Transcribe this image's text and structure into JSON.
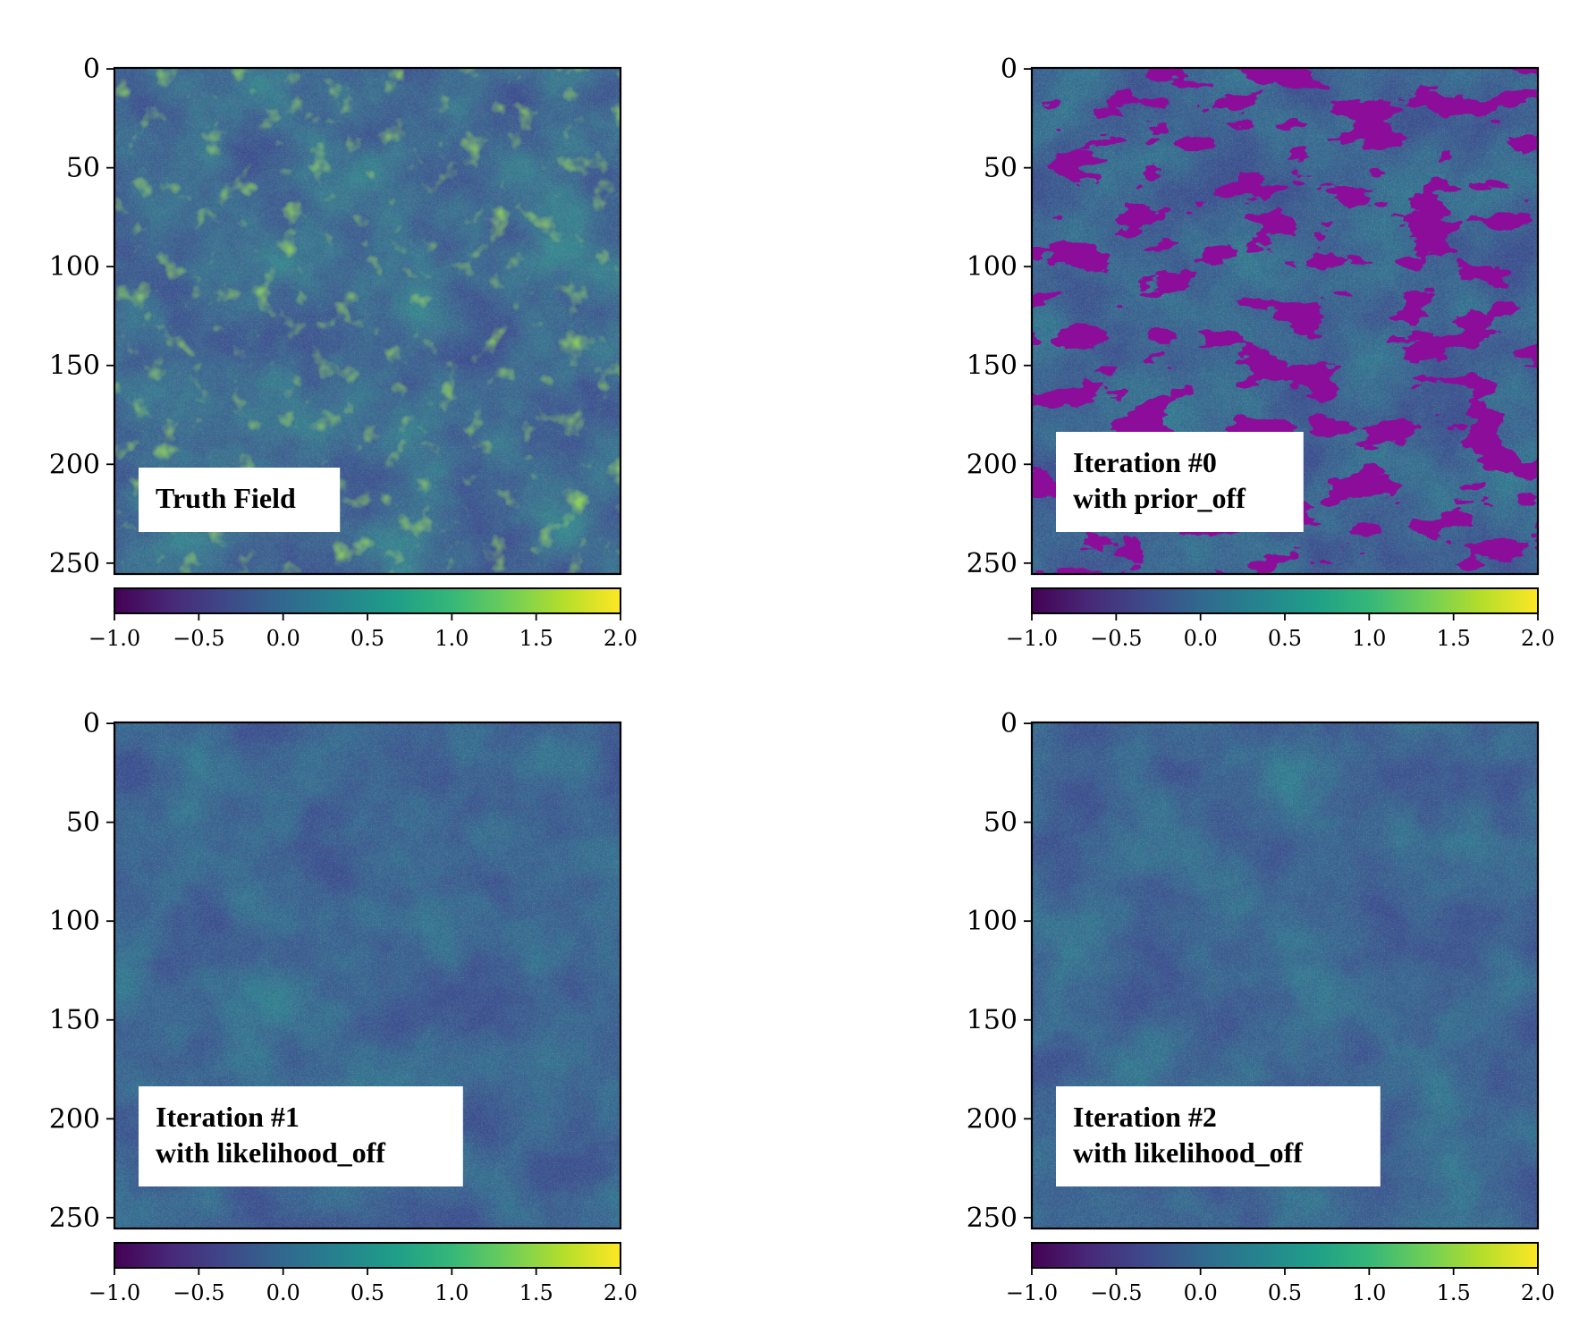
{
  "chart_data": [
    {
      "type": "heatmap",
      "panel": "top-left",
      "annotation_lines": [
        "Truth Field"
      ],
      "field_style": "truth",
      "image_size": [
        256,
        256
      ],
      "yticks": [
        0,
        50,
        100,
        150,
        200,
        250
      ],
      "colorbar": {
        "colormap": "viridis",
        "orientation": "horizontal",
        "range": [
          -1.0,
          2.0
        ],
        "ticks": [
          "−1.0",
          "−0.5",
          "0.0",
          "0.5",
          "1.0",
          "1.5",
          "2.0"
        ]
      }
    },
    {
      "type": "heatmap",
      "panel": "top-right",
      "annotation_lines": [
        "Iteration #0",
        "with prior_off"
      ],
      "field_style": "iteration0",
      "image_size": [
        256,
        256
      ],
      "yticks": [
        0,
        50,
        100,
        150,
        200,
        250
      ],
      "colorbar": {
        "colormap": "viridis",
        "orientation": "horizontal",
        "range": [
          -1.0,
          2.0
        ],
        "ticks": [
          "−1.0",
          "−0.5",
          "0.0",
          "0.5",
          "1.0",
          "1.5",
          "2.0"
        ]
      }
    },
    {
      "type": "heatmap",
      "panel": "bottom-left",
      "annotation_lines": [
        "Iteration #1",
        "with likelihood_off"
      ],
      "field_style": "smoothed",
      "image_size": [
        256,
        256
      ],
      "yticks": [
        0,
        50,
        100,
        150,
        200,
        250
      ],
      "colorbar": {
        "colormap": "viridis",
        "orientation": "horizontal",
        "range": [
          -1.0,
          2.0
        ],
        "ticks": [
          "−1.0",
          "−0.5",
          "0.0",
          "0.5",
          "1.0",
          "1.5",
          "2.0"
        ]
      }
    },
    {
      "type": "heatmap",
      "panel": "bottom-right",
      "annotation_lines": [
        "Iteration #2",
        "with likelihood_off"
      ],
      "field_style": "smoothed",
      "image_size": [
        256,
        256
      ],
      "yticks": [
        0,
        50,
        100,
        150,
        200,
        250
      ],
      "colorbar": {
        "colormap": "viridis",
        "orientation": "horizontal",
        "range": [
          -1.0,
          2.0
        ],
        "ticks": [
          "−1.0",
          "−0.5",
          "0.0",
          "0.5",
          "1.0",
          "1.5",
          "2.0"
        ]
      }
    }
  ],
  "colors": {
    "viridis_stops": [
      "#440154",
      "#482878",
      "#3e4989",
      "#31688e",
      "#26828e",
      "#1f9e89",
      "#35b779",
      "#6ece58",
      "#b5de2b",
      "#fde725"
    ],
    "field_dark": "#3a4d8c",
    "field_mid": "#2f7f8e",
    "field_bright": "#9fd83f",
    "masked": "#440154"
  }
}
